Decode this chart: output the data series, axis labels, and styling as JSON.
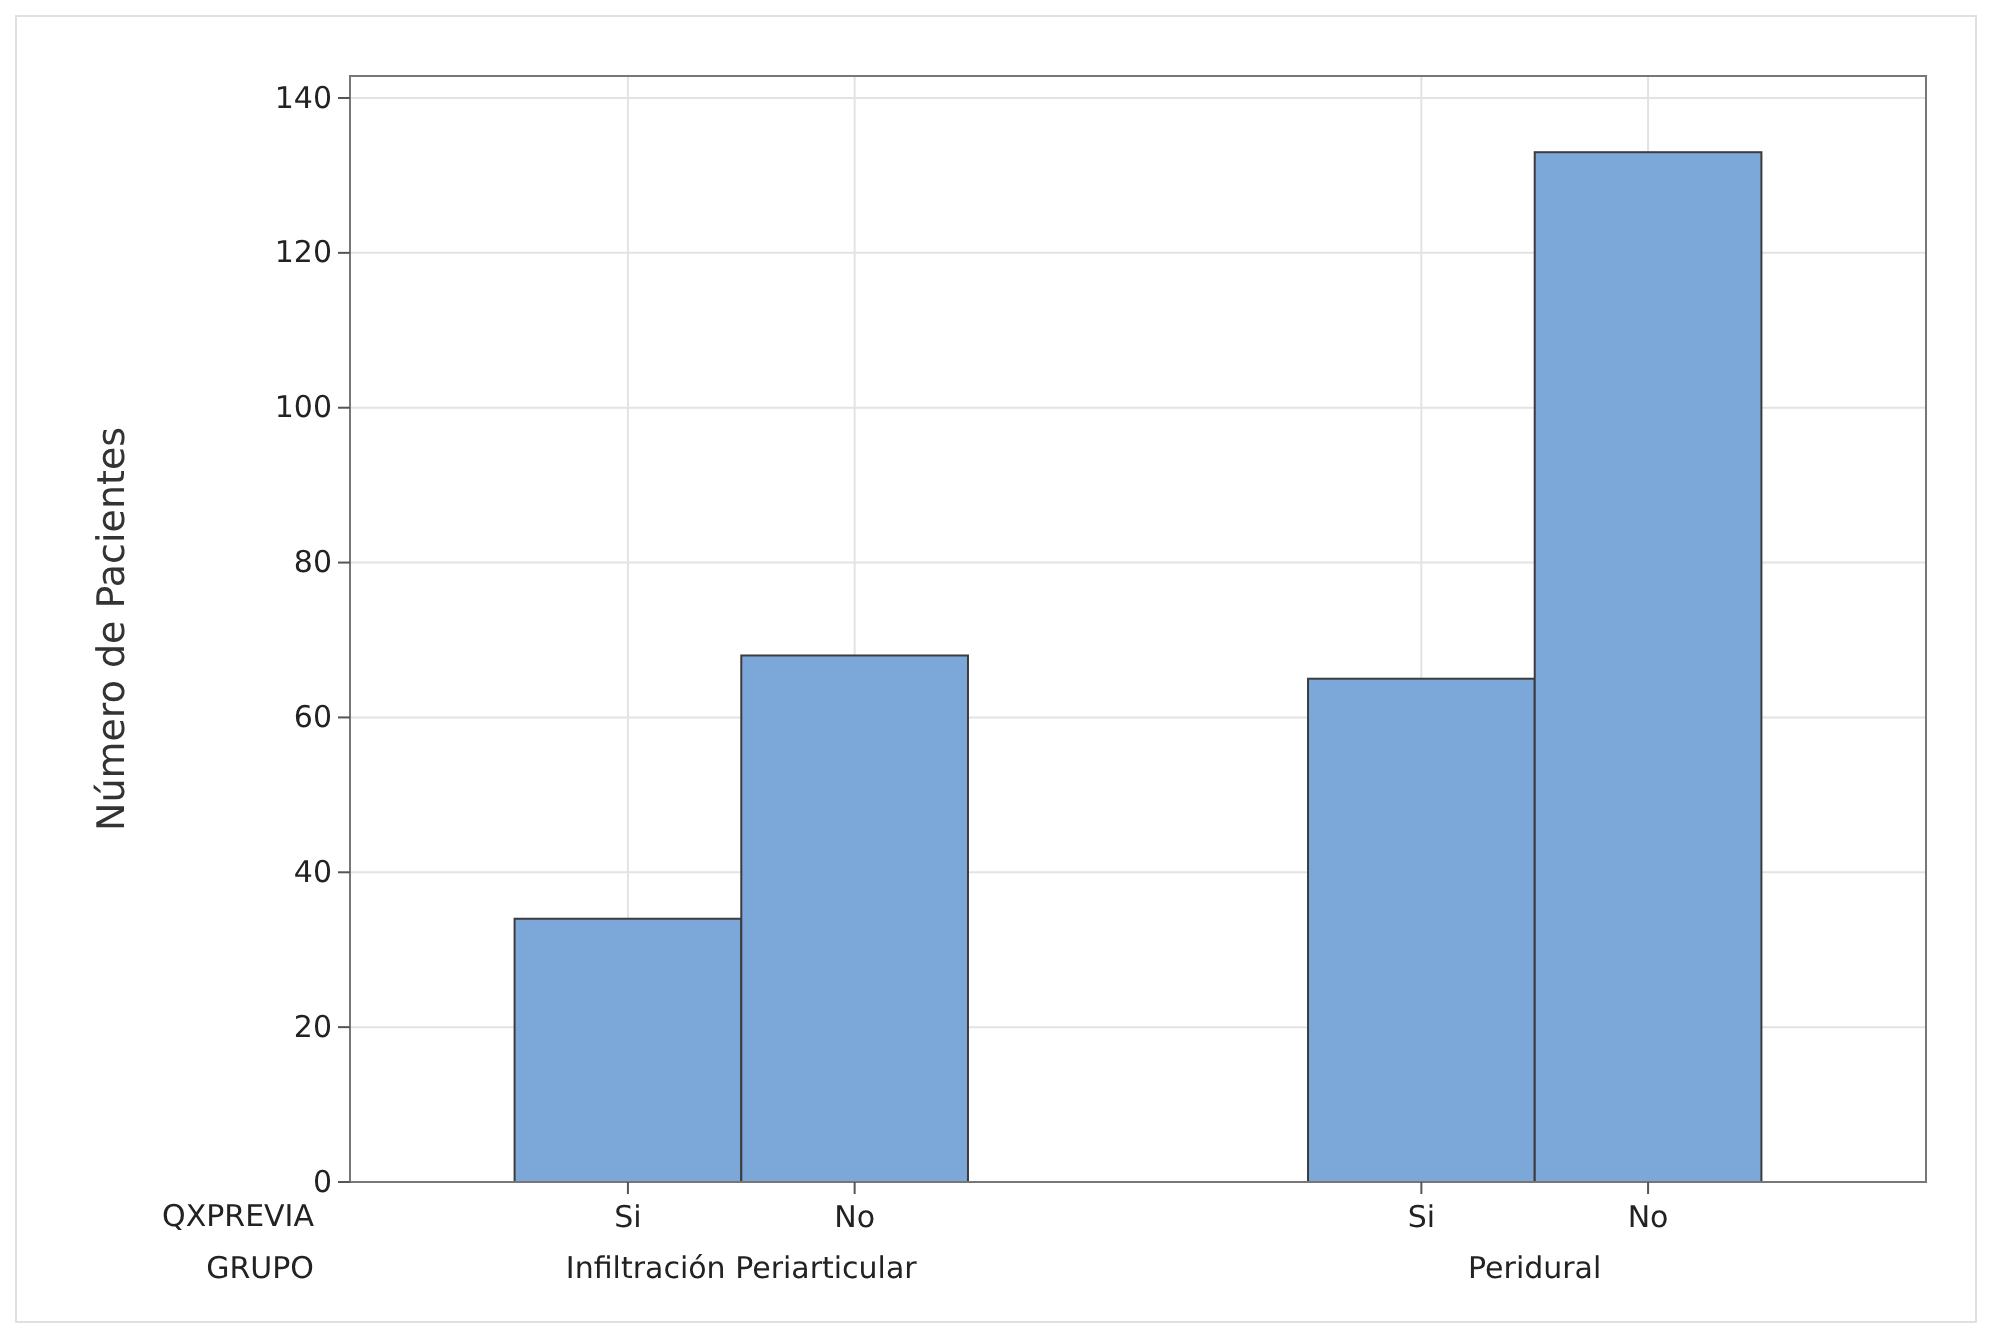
{
  "chart_data": {
    "type": "bar",
    "ylabel": "Número de Pacientes",
    "categories": [
      "Si",
      "No",
      "Si",
      "No"
    ],
    "values": [
      34,
      68,
      65,
      133
    ],
    "color": "#7ba7d9",
    "ylim": [
      0,
      140
    ],
    "yticks": [
      0,
      20,
      40,
      60,
      80,
      100,
      120,
      140
    ],
    "grid": true,
    "annotations": [
      "QXPREVIA",
      "GRUPO",
      "Infiltración Periarticular",
      "Peridural"
    ]
  }
}
